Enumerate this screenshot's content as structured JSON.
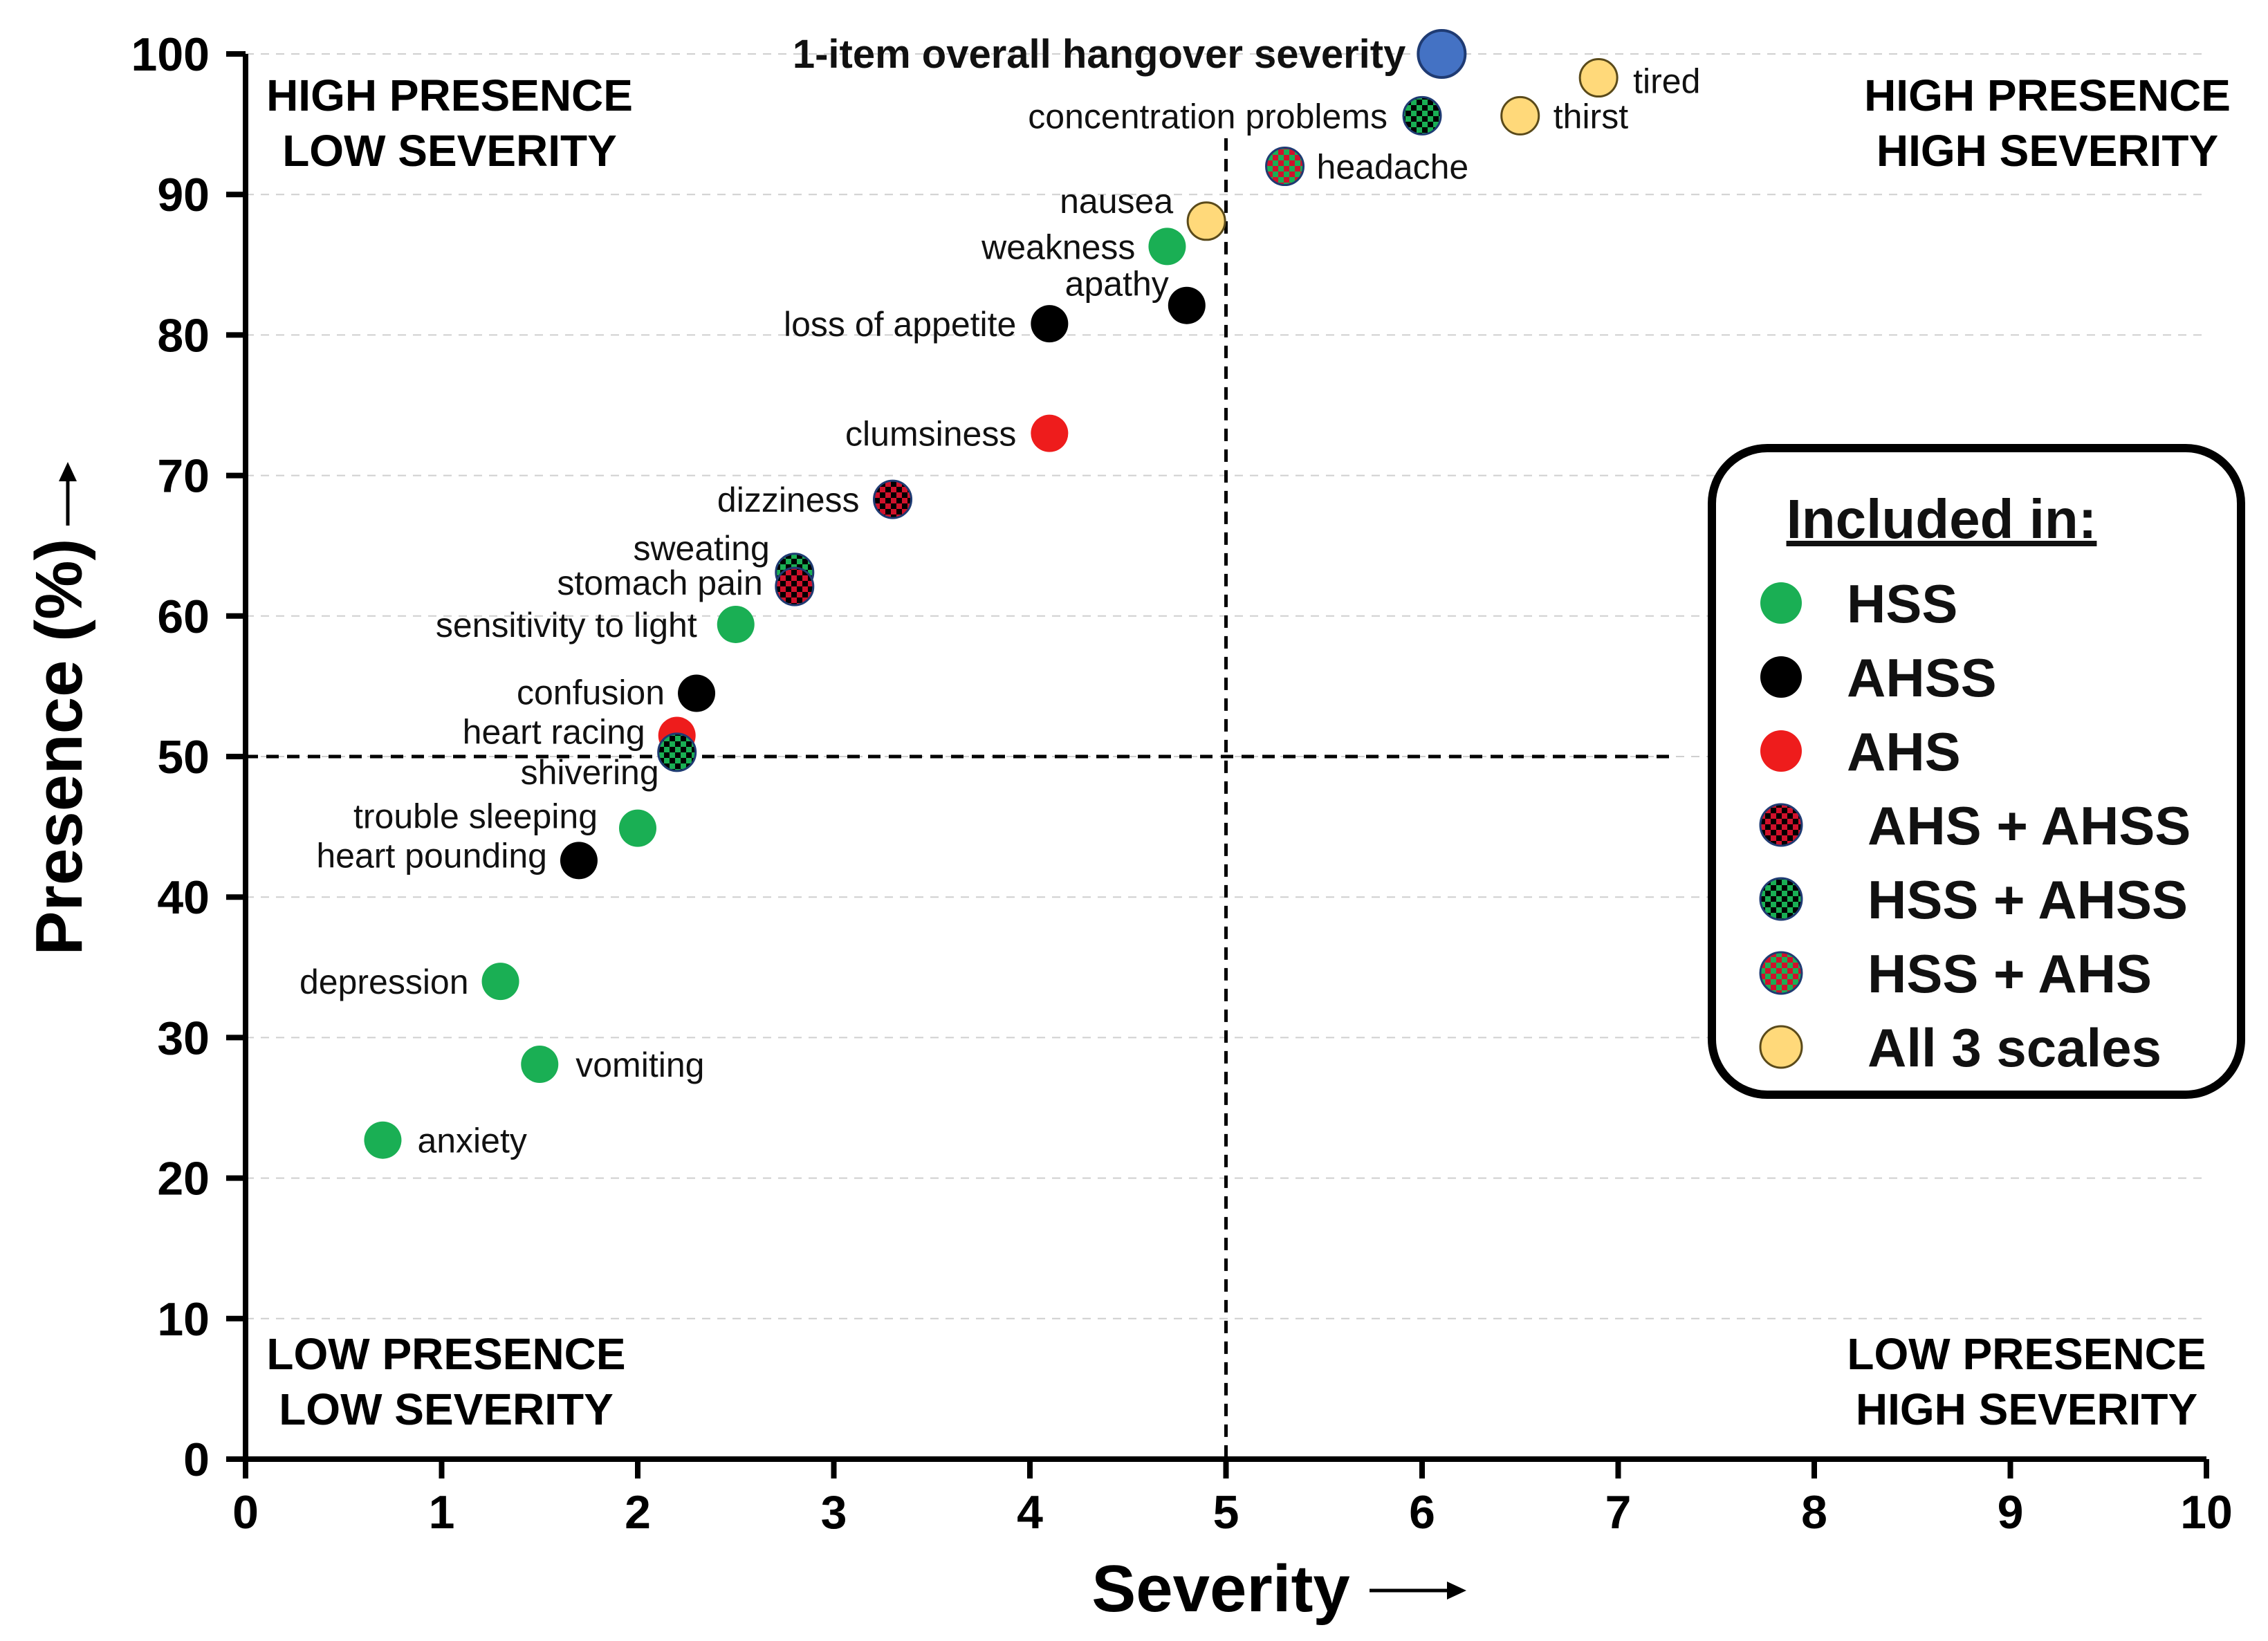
{
  "chart_data": {
    "type": "scatter",
    "xlabel": "Severity",
    "ylabel": "Presence (%)",
    "xlim": [
      0,
      10
    ],
    "ylim": [
      0,
      100
    ],
    "x_ticks": [
      "0",
      "1",
      "2",
      "3",
      "4",
      "5",
      "6",
      "7",
      "8",
      "9",
      "10"
    ],
    "y_ticks": [
      "0",
      "10",
      "20",
      "30",
      "40",
      "50",
      "60",
      "70",
      "80",
      "90",
      "100"
    ],
    "grid": "horizontal dashed",
    "reference_lines": {
      "x": 5,
      "y": 50
    },
    "quadrants": {
      "top_left": [
        "HIGH PRESENCE",
        "LOW SEVERITY"
      ],
      "top_right": [
        "HIGH PRESENCE",
        "HIGH SEVERITY"
      ],
      "bottom_left": [
        "LOW PRESENCE",
        "LOW SEVERITY"
      ],
      "bottom_right": [
        "LOW PRESENCE",
        "HIGH SEVERITY"
      ]
    },
    "legend": {
      "title": "Included in:",
      "placement": "right",
      "items": [
        {
          "key": "HSS",
          "label": "HSS",
          "style": "solid",
          "colors": [
            "#1aaf54"
          ]
        },
        {
          "key": "AHSS",
          "label": "AHSS",
          "style": "solid",
          "colors": [
            "#000000"
          ]
        },
        {
          "key": "AHS",
          "label": "AHS",
          "style": "solid",
          "colors": [
            "#ee1c1c"
          ]
        },
        {
          "key": "AHS+AHSS",
          "label": "AHS + AHSS",
          "style": "checker",
          "colors": [
            "#d0112b",
            "#000000"
          ]
        },
        {
          "key": "HSS+AHSS",
          "label": "HSS + AHSS",
          "style": "checker",
          "colors": [
            "#1aaf54",
            "#000000"
          ]
        },
        {
          "key": "HSS+AHS",
          "label": "HSS + AHS",
          "style": "checker",
          "colors": [
            "#1aaf54",
            "#d0112b"
          ]
        },
        {
          "key": "All",
          "label": "All 3 scales",
          "style": "solid",
          "colors": [
            "#ffd97a"
          ]
        }
      ]
    },
    "highlight": {
      "label": "1-item overall hangover severity",
      "x": 6.1,
      "y": 100,
      "color": "#4472c4"
    },
    "points": [
      {
        "label": "tired",
        "x": 6.9,
        "y": 98.3,
        "group": "All"
      },
      {
        "label": "thirst",
        "x": 6.5,
        "y": 95.6,
        "group": "All"
      },
      {
        "label": "concentration problems",
        "x": 6.0,
        "y": 95.6,
        "group": "HSS+AHSS"
      },
      {
        "label": "headache",
        "x": 5.3,
        "y": 92.0,
        "group": "HSS+AHS"
      },
      {
        "label": "nausea",
        "x": 4.9,
        "y": 88.1,
        "group": "All"
      },
      {
        "label": "weakness",
        "x": 4.7,
        "y": 86.3,
        "group": "HSS"
      },
      {
        "label": "apathy",
        "x": 4.8,
        "y": 82.1,
        "group": "AHSS"
      },
      {
        "label": "loss of appetite",
        "x": 4.1,
        "y": 80.8,
        "group": "AHSS"
      },
      {
        "label": "clumsiness",
        "x": 4.1,
        "y": 73.0,
        "group": "AHS"
      },
      {
        "label": "dizziness",
        "x": 3.3,
        "y": 68.3,
        "group": "AHS+AHSS"
      },
      {
        "label": "sweating",
        "x": 2.8,
        "y": 63.1,
        "group": "HSS+AHSS"
      },
      {
        "label": "stomach pain",
        "x": 2.8,
        "y": 62.1,
        "group": "AHS+AHSS"
      },
      {
        "label": "sensitivity to light",
        "x": 2.5,
        "y": 59.4,
        "group": "HSS"
      },
      {
        "label": "confusion",
        "x": 2.3,
        "y": 54.5,
        "group": "AHSS"
      },
      {
        "label": "heart racing",
        "x": 2.2,
        "y": 51.5,
        "group": "AHS"
      },
      {
        "label": "shivering",
        "x": 2.2,
        "y": 50.3,
        "group": "HSS+AHSS"
      },
      {
        "label": "trouble sleeping",
        "x": 2.0,
        "y": 44.9,
        "group": "HSS"
      },
      {
        "label": "heart pounding",
        "x": 1.7,
        "y": 42.6,
        "group": "AHSS"
      },
      {
        "label": "depression",
        "x": 1.3,
        "y": 34.0,
        "group": "HSS"
      },
      {
        "label": "vomiting",
        "x": 1.5,
        "y": 28.1,
        "group": "HSS"
      },
      {
        "label": "anxiety",
        "x": 0.7,
        "y": 22.7,
        "group": "HSS"
      }
    ]
  }
}
